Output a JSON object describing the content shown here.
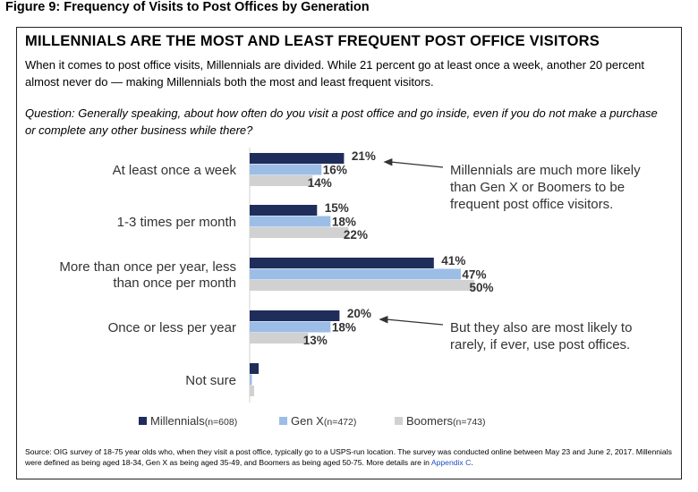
{
  "figure_title": "Figure 9: Frequency of Visits to Post Offices by Generation",
  "headline": "MILLENNIALS ARE THE MOST AND LEAST FREQUENT POST OFFICE VISITORS",
  "intro": "When it comes to post office visits, Millennials are divided. While 21 percent go at least once a week, another 20 percent almost never do — making Millennials both the most and least frequent visitors.",
  "question": "Question: Generally speaking, about how often do you visit a post office and go inside, even if you do not make a purchase or complete any other business while there?",
  "source": {
    "text": "Source: OIG survey of 18-75 year olds who, when they visit a post office, typically go to a USPS-run location. The survey was conducted online between May 23 and June 2, 2017. Millennials were defined as being aged 18-34, Gen X as being aged 35-49, and Boomers as being aged 50-75. More details are in ",
    "link": "Appendix C",
    "end": "."
  },
  "chart_data": {
    "type": "bar",
    "orientation": "horizontal",
    "categories": [
      [
        "At least once a week"
      ],
      [
        "1-3 times per month"
      ],
      [
        "More than once per year, less",
        "than once per  month"
      ],
      [
        "Once or less per year"
      ],
      [
        "Not sure"
      ]
    ],
    "series": [
      {
        "name": "Millennials",
        "sample": "(n=608)",
        "color": "#1f2d5a",
        "values": [
          21,
          15,
          41,
          20,
          2
        ]
      },
      {
        "name": "Gen X",
        "sample": "(n=472)",
        "color": "#9cbde6",
        "values": [
          16,
          18,
          47,
          18,
          0.5
        ]
      },
      {
        "name": "Boomers",
        "sample": "(n=743)",
        "color": "#d1d1d1",
        "values": [
          14,
          22,
          50,
          13,
          1
        ]
      }
    ],
    "data_labels": [
      [
        "21%",
        "16%",
        "14%"
      ],
      [
        "15%",
        "18%",
        "22%"
      ],
      [
        "41%",
        "47%",
        "50%"
      ],
      [
        "20%",
        "18%",
        "13%"
      ],
      [
        "",
        "",
        ""
      ]
    ],
    "legend_position": "bottom-left",
    "annotations": [
      {
        "target_category": 0,
        "lines": [
          "Millennials are much more likely",
          "than Gen X or Boomers to be",
          "frequent post office visitors."
        ]
      },
      {
        "target_category": 3,
        "lines": [
          "But they also are most likely to",
          "rarely, if ever, use post offices."
        ]
      }
    ],
    "xlim": [
      0,
      50
    ],
    "grid": false
  }
}
